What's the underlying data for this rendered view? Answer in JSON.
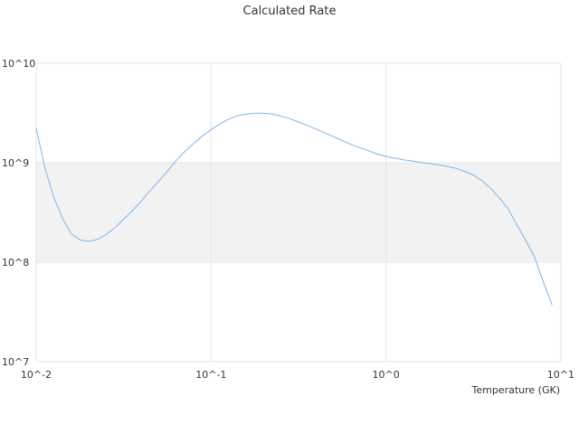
{
  "chart_data": {
    "type": "line",
    "title": "Calculated Rate",
    "xlabel": "Temperature (GK)",
    "ylabel": "",
    "x_scale": "log",
    "y_scale": "log",
    "xlim": [
      0.01,
      10
    ],
    "ylim": [
      10000000,
      10000000000
    ],
    "x_tick_labels": [
      "10^-2",
      "10^-1",
      "10^0",
      "10^1"
    ],
    "y_tick_labels": [
      "10^7",
      "10^8",
      "10^9",
      "10^10"
    ],
    "grid": true,
    "band": {
      "from": 100000000,
      "to": 1000000000,
      "color": "#f2f2f2"
    },
    "series": [
      {
        "color": "#7cb5ec",
        "x": [
          0.01,
          0.0112,
          0.0126,
          0.0141,
          0.0158,
          0.0178,
          0.02,
          0.0224,
          0.0251,
          0.0282,
          0.0316,
          0.0355,
          0.0398,
          0.0447,
          0.0501,
          0.0562,
          0.0631,
          0.0708,
          0.0794,
          0.0891,
          0.1,
          0.112,
          0.126,
          0.141,
          0.158,
          0.178,
          0.2,
          0.224,
          0.251,
          0.282,
          0.316,
          0.355,
          0.398,
          0.447,
          0.501,
          0.562,
          0.631,
          0.708,
          0.794,
          0.891,
          1.0,
          1.12,
          1.26,
          1.41,
          1.58,
          1.78,
          2.0,
          2.24,
          2.51,
          2.82,
          3.16,
          3.55,
          3.98,
          4.47,
          5.01,
          5.62,
          6.31,
          7.08,
          7.94,
          8.91
        ],
        "y": [
          2200000000,
          900000000,
          450000000,
          280000000,
          195000000,
          168000000,
          162000000,
          170000000,
          190000000,
          222000000,
          270000000,
          330000000,
          410000000,
          520000000,
          650000000,
          820000000,
          1050000000,
          1300000000,
          1560000000,
          1850000000,
          2150000000,
          2450000000,
          2750000000,
          2960000000,
          3080000000,
          3150000000,
          3150000000,
          3080000000,
          2950000000,
          2780000000,
          2570000000,
          2370000000,
          2180000000,
          1990000000,
          1830000000,
          1670000000,
          1530000000,
          1420000000,
          1320000000,
          1220000000,
          1160000000,
          1110000000,
          1070000000,
          1040000000,
          1010000000,
          980000000,
          950000000,
          920000000,
          880000000,
          820000000,
          750000000,
          660000000,
          550000000,
          440000000,
          340000000,
          235000000,
          165000000,
          112000000,
          63000000,
          37000000
        ]
      }
    ]
  }
}
